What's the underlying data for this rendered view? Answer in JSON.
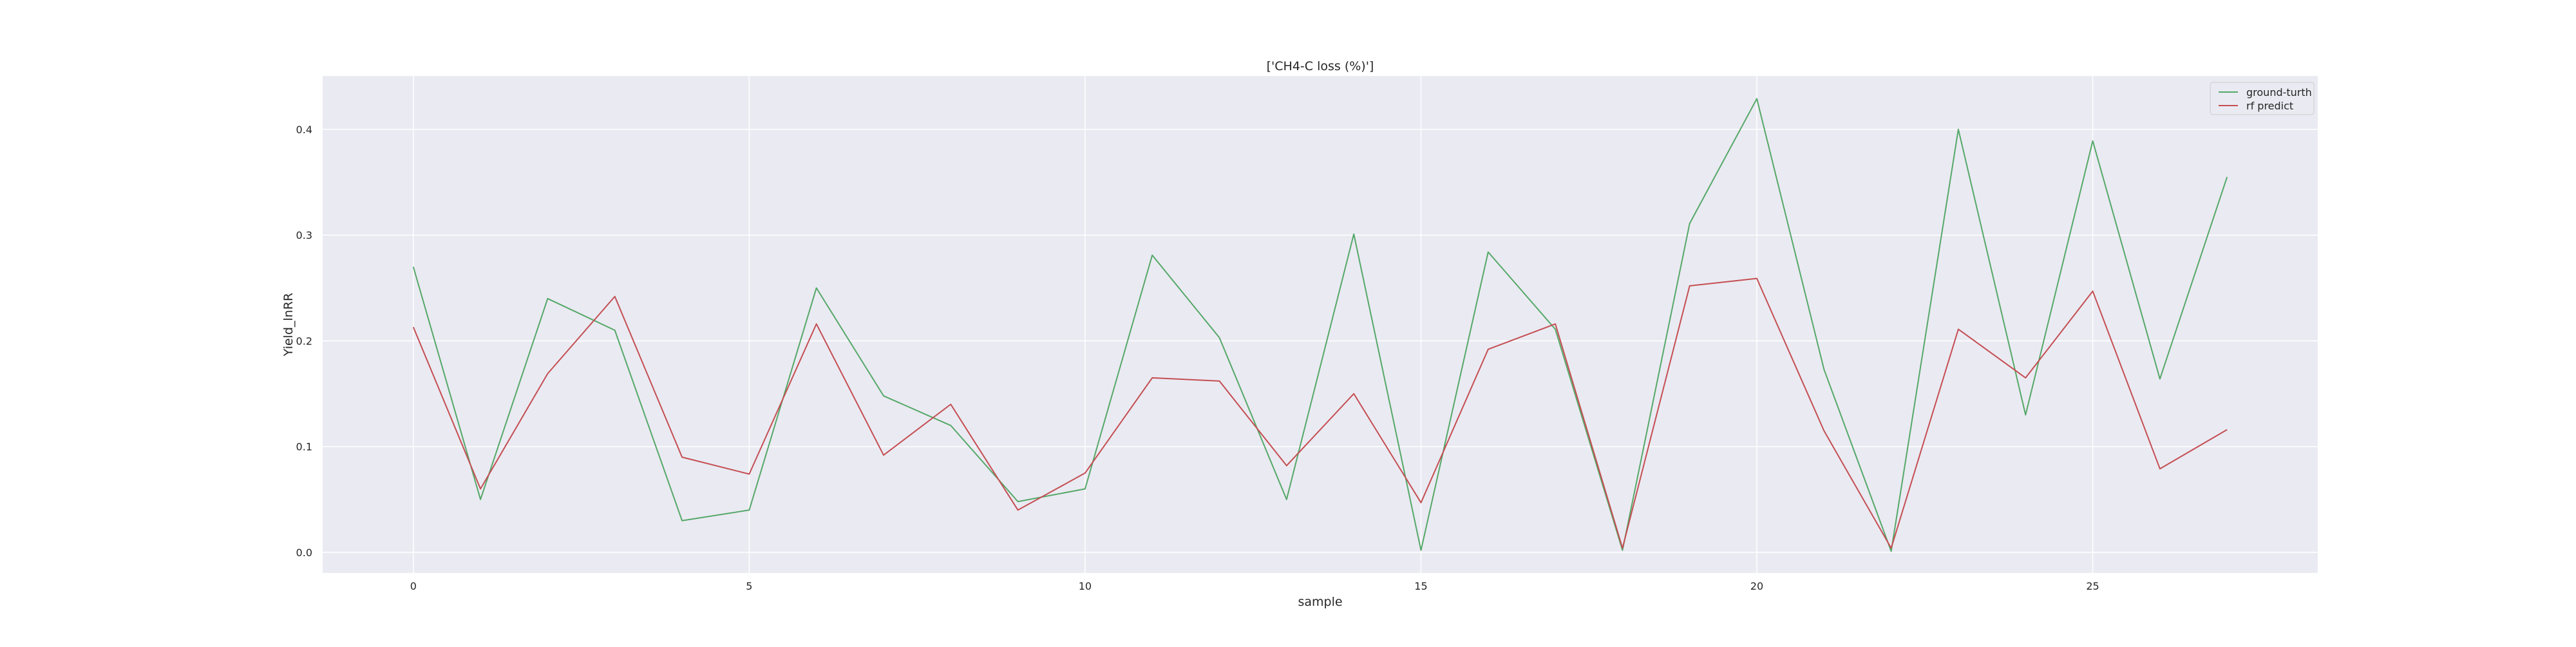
{
  "chart_data": {
    "type": "line",
    "title": "['CH4-C loss (%)']",
    "xlabel": "sample",
    "ylabel": "Yield_lnRR",
    "x": [
      0,
      1,
      2,
      3,
      4,
      5,
      6,
      7,
      8,
      9,
      10,
      11,
      12,
      13,
      14,
      15,
      16,
      17,
      18,
      19,
      20,
      21,
      22,
      23,
      24,
      25,
      26,
      27
    ],
    "series": [
      {
        "name": "ground-turth",
        "color": "#55a868",
        "values": [
          0.27,
          0.05,
          0.24,
          0.21,
          0.03,
          0.04,
          0.25,
          0.148,
          0.12,
          0.048,
          0.06,
          0.281,
          0.203,
          0.05,
          0.301,
          0.002,
          0.284,
          0.211,
          0.002,
          0.311,
          0.429,
          0.173,
          0.001,
          0.4,
          0.13,
          0.389,
          0.164,
          0.355
        ]
      },
      {
        "name": "rf predict",
        "color": "#c44e52",
        "values": [
          0.213,
          0.06,
          0.169,
          0.242,
          0.09,
          0.074,
          0.216,
          0.092,
          0.14,
          0.04,
          0.075,
          0.165,
          0.162,
          0.082,
          0.15,
          0.047,
          0.192,
          0.216,
          0.004,
          0.252,
          0.259,
          0.115,
          0.004,
          0.211,
          0.165,
          0.247,
          0.079,
          0.116
        ]
      }
    ],
    "xticks": [
      0,
      5,
      10,
      15,
      20,
      25
    ],
    "yticks": [
      0.0,
      0.1,
      0.2,
      0.3,
      0.4
    ],
    "xlim": [
      -1.35,
      28.35
    ],
    "ylim": [
      -0.0195,
      0.4505
    ],
    "grid": true,
    "legend_position": "top-right",
    "background": "#eaeaf2"
  }
}
